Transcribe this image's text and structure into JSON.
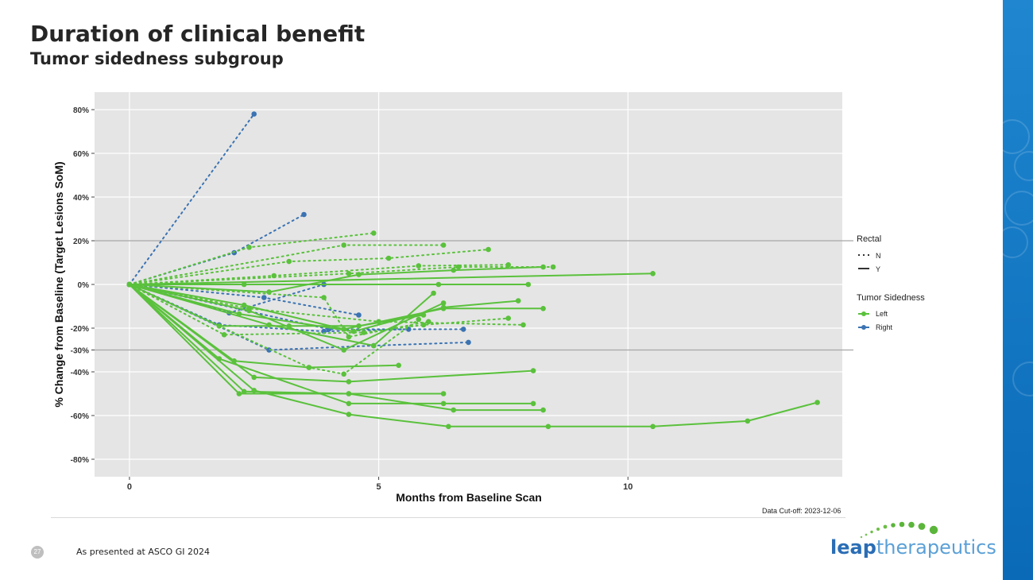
{
  "slide": {
    "title": "Duration of clinical benefit",
    "subtitle": "Tumor sidedness subgroup",
    "page_number": "27",
    "presented_note": "As presented at ASCO GI 2024",
    "data_cutoff": "Data Cut-off: 2023-12-06",
    "logo_bold": "leap",
    "logo_light": "therapeutics"
  },
  "colors": {
    "left": "#5ac13c",
    "right": "#3b73b3",
    "panel": "#e5e5e5",
    "grid": "#ffffff",
    "ref": "#a6a6a6"
  },
  "chart_data": {
    "type": "line",
    "title": "",
    "xlabel": "Months from Baseline Scan",
    "ylabel": "% Change from Baseline (Target Lesions SoM)",
    "xlim": [
      -0.7,
      14.3
    ],
    "ylim": [
      -88,
      88
    ],
    "xticks": [
      0,
      5,
      10
    ],
    "xtick_labels": [
      "0",
      "5",
      "10"
    ],
    "yticks": [
      80,
      60,
      40,
      20,
      0,
      -20,
      -30,
      -40,
      -60,
      -80
    ],
    "ytick_labels": [
      "80%",
      "60%",
      "40%",
      "20%",
      "0%",
      "-20%",
      "-30%",
      "-40%",
      "-60%",
      "-80%"
    ],
    "reference_lines": [
      20,
      -30
    ],
    "legend": {
      "rectal_title": "Rectal",
      "rectal_items": [
        {
          "label": "N",
          "style": "dotted"
        },
        {
          "label": "Y",
          "style": "solid"
        }
      ],
      "sidedness_title": "Tumor Sidedness",
      "sidedness_items": [
        {
          "label": "Left",
          "color": "#5ac13c"
        },
        {
          "label": "Right",
          "color": "#3b73b3"
        }
      ],
      "position": "right"
    },
    "series": [
      {
        "side": "Right",
        "rectal": "N",
        "points": [
          [
            0,
            0
          ],
          [
            2.5,
            78
          ]
        ]
      },
      {
        "side": "Right",
        "rectal": "N",
        "points": [
          [
            0,
            0
          ],
          [
            2.1,
            14.5
          ],
          [
            3.5,
            32
          ]
        ]
      },
      {
        "side": "Right",
        "rectal": "N",
        "points": [
          [
            0,
            0
          ],
          [
            2.0,
            -13
          ],
          [
            3.9,
            0
          ]
        ]
      },
      {
        "side": "Right",
        "rectal": "N",
        "points": [
          [
            0,
            0
          ],
          [
            2.7,
            -6
          ],
          [
            4.6,
            -14
          ]
        ]
      },
      {
        "side": "Right",
        "rectal": "N",
        "points": [
          [
            0,
            0
          ],
          [
            1.8,
            -18.5
          ],
          [
            3.9,
            -21.5
          ],
          [
            5.6,
            -20.5
          ]
        ]
      },
      {
        "side": "Right",
        "rectal": "N",
        "points": [
          [
            0,
            0
          ],
          [
            2.8,
            -30
          ],
          [
            4.9,
            -28
          ],
          [
            6.8,
            -26.5
          ]
        ]
      },
      {
        "side": "Right",
        "rectal": "N",
        "points": [
          [
            0,
            0
          ],
          [
            4.0,
            -20.5
          ],
          [
            6.7,
            -20.5
          ]
        ]
      },
      {
        "side": "Left",
        "rectal": "N",
        "points": [
          [
            0,
            0
          ],
          [
            2.4,
            17
          ],
          [
            4.9,
            23.5
          ]
        ]
      },
      {
        "side": "Left",
        "rectal": "N",
        "points": [
          [
            0,
            0
          ],
          [
            4.3,
            18
          ],
          [
            6.3,
            18
          ]
        ]
      },
      {
        "side": "Left",
        "rectal": "N",
        "points": [
          [
            0,
            0
          ],
          [
            3.2,
            10.5
          ],
          [
            5.2,
            12
          ],
          [
            7.2,
            16
          ]
        ]
      },
      {
        "side": "Left",
        "rectal": "N",
        "points": [
          [
            0,
            0
          ],
          [
            2.9,
            4
          ],
          [
            5.8,
            8.5
          ],
          [
            7.6,
            9
          ]
        ]
      },
      {
        "side": "Left",
        "rectal": "N",
        "points": [
          [
            0,
            0
          ],
          [
            4.4,
            5
          ],
          [
            6.6,
            8
          ],
          [
            8.5,
            8
          ]
        ]
      },
      {
        "side": "Left",
        "rectal": "N",
        "points": [
          [
            0,
            0
          ],
          [
            3.9,
            -6
          ],
          [
            4.4,
            -24
          ],
          [
            6.0,
            -17
          ]
        ]
      },
      {
        "side": "Left",
        "rectal": "N",
        "points": [
          [
            0,
            0
          ],
          [
            1.9,
            -23
          ],
          [
            4.7,
            -22
          ],
          [
            5.9,
            -18.5
          ],
          [
            7.6,
            -15.5
          ]
        ]
      },
      {
        "side": "Left",
        "rectal": "N",
        "points": [
          [
            0,
            0
          ],
          [
            2.4,
            -11
          ],
          [
            5.0,
            -17
          ],
          [
            7.9,
            -18.5
          ]
        ]
      },
      {
        "side": "Left",
        "rectal": "N",
        "points": [
          [
            0,
            0
          ],
          [
            3.6,
            -38
          ],
          [
            4.3,
            -41
          ],
          [
            5.8,
            -16
          ]
        ]
      },
      {
        "side": "Left",
        "rectal": "Y",
        "points": [
          [
            0,
            0
          ],
          [
            10.5,
            5
          ]
        ]
      },
      {
        "side": "Left",
        "rectal": "Y",
        "points": [
          [
            0,
            0
          ],
          [
            2.3,
            0
          ],
          [
            6.2,
            0
          ],
          [
            8.0,
            0
          ]
        ]
      },
      {
        "side": "Left",
        "rectal": "Y",
        "points": [
          [
            0,
            0
          ],
          [
            2.8,
            -3.5
          ],
          [
            4.6,
            4.5
          ],
          [
            6.5,
            6.5
          ],
          [
            8.3,
            8
          ]
        ]
      },
      {
        "side": "Left",
        "rectal": "Y",
        "points": [
          [
            0,
            0
          ],
          [
            2.3,
            -9.5
          ],
          [
            4.3,
            -20.5
          ],
          [
            6.3,
            -11
          ],
          [
            8.3,
            -11
          ]
        ]
      },
      {
        "side": "Left",
        "rectal": "Y",
        "points": [
          [
            0,
            0
          ],
          [
            2.2,
            -13.5
          ],
          [
            4.5,
            -21.5
          ],
          [
            6.3,
            -10.5
          ],
          [
            7.8,
            -7.5
          ]
        ]
      },
      {
        "side": "Left",
        "rectal": "Y",
        "points": [
          [
            0,
            0
          ],
          [
            2.4,
            -12
          ],
          [
            4.3,
            -30
          ],
          [
            6.3,
            -8.5
          ]
        ]
      },
      {
        "side": "Left",
        "rectal": "Y",
        "points": [
          [
            0,
            0
          ],
          [
            2.8,
            -18.5
          ],
          [
            4.9,
            -28
          ],
          [
            6.1,
            -4
          ]
        ]
      },
      {
        "side": "Left",
        "rectal": "Y",
        "points": [
          [
            0,
            0
          ],
          [
            1.8,
            -19
          ],
          [
            3.2,
            -19
          ],
          [
            4.6,
            -19
          ],
          [
            5.9,
            -14
          ]
        ]
      },
      {
        "side": "Left",
        "rectal": "Y",
        "points": [
          [
            0,
            0
          ],
          [
            2.1,
            -35
          ],
          [
            3.6,
            -38
          ],
          [
            5.4,
            -37
          ]
        ]
      },
      {
        "side": "Left",
        "rectal": "Y",
        "points": [
          [
            0,
            0
          ],
          [
            2.5,
            -42.5
          ],
          [
            4.4,
            -44.5
          ],
          [
            8.1,
            -39.5
          ]
        ]
      },
      {
        "side": "Left",
        "rectal": "Y",
        "points": [
          [
            0,
            0
          ],
          [
            1.8,
            -34
          ],
          [
            4.4,
            -54.5
          ],
          [
            6.3,
            -54.5
          ],
          [
            8.1,
            -54.5
          ]
        ]
      },
      {
        "side": "Left",
        "rectal": "Y",
        "points": [
          [
            0,
            0
          ],
          [
            2.3,
            -49
          ],
          [
            4.4,
            -50
          ],
          [
            6.3,
            -50
          ]
        ]
      },
      {
        "side": "Left",
        "rectal": "Y",
        "points": [
          [
            0,
            0
          ],
          [
            2.2,
            -50
          ],
          [
            4.4,
            -50
          ],
          [
            6.5,
            -57.5
          ],
          [
            8.3,
            -57.5
          ]
        ]
      },
      {
        "side": "Left",
        "rectal": "Y",
        "points": [
          [
            0,
            0
          ],
          [
            2.5,
            -48.5
          ],
          [
            4.4,
            -59.5
          ],
          [
            6.4,
            -65
          ],
          [
            8.4,
            -65
          ],
          [
            10.5,
            -65
          ],
          [
            12.4,
            -62.5
          ],
          [
            13.8,
            -54
          ]
        ]
      }
    ]
  }
}
